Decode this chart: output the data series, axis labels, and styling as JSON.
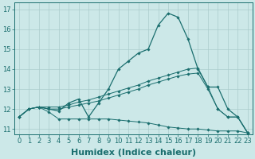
{
  "bg_color": "#cce8e8",
  "grid_color": "#aacccc",
  "line_color": "#1a6e6e",
  "xlabel": "Humidex (Indice chaleur)",
  "xlim": [
    -0.5,
    23.5
  ],
  "ylim": [
    10.75,
    17.35
  ],
  "yticks": [
    11,
    12,
    13,
    14,
    15,
    16,
    17
  ],
  "xticks": [
    0,
    1,
    2,
    3,
    4,
    5,
    6,
    7,
    8,
    9,
    10,
    11,
    12,
    13,
    14,
    15,
    16,
    17,
    18,
    19,
    20,
    21,
    22,
    23
  ],
  "tick_fontsize": 6,
  "xlabel_fontsize": 8,
  "curve_y": [
    11.6,
    12.0,
    12.1,
    12.0,
    11.9,
    12.3,
    12.5,
    11.6,
    12.3,
    13.0,
    14.0,
    14.4,
    14.8,
    15.0,
    16.2,
    16.8,
    16.6,
    15.5,
    14.0,
    13.1,
    13.1,
    12.0,
    11.6,
    10.8
  ],
  "upper_line_y": [
    11.6,
    12.0,
    12.1,
    12.1,
    12.1,
    12.2,
    12.35,
    12.45,
    12.6,
    12.75,
    12.9,
    13.05,
    13.2,
    13.4,
    13.55,
    13.7,
    13.85,
    14.0,
    14.05,
    13.1,
    12.0,
    11.6,
    11.6,
    10.8
  ],
  "lower_line_y": [
    11.6,
    12.0,
    12.1,
    11.85,
    11.5,
    11.5,
    11.5,
    11.5,
    11.5,
    11.5,
    11.45,
    11.4,
    11.35,
    11.3,
    11.2,
    11.1,
    11.05,
    11.0,
    11.0,
    10.95,
    10.9,
    10.9,
    10.9,
    10.8
  ],
  "mid_line_y": [
    11.6,
    12.0,
    12.1,
    12.0,
    12.0,
    12.1,
    12.2,
    12.3,
    12.4,
    12.55,
    12.7,
    12.85,
    13.0,
    13.2,
    13.35,
    13.5,
    13.65,
    13.75,
    13.8,
    13.0,
    12.0,
    11.6,
    11.6,
    10.8
  ]
}
